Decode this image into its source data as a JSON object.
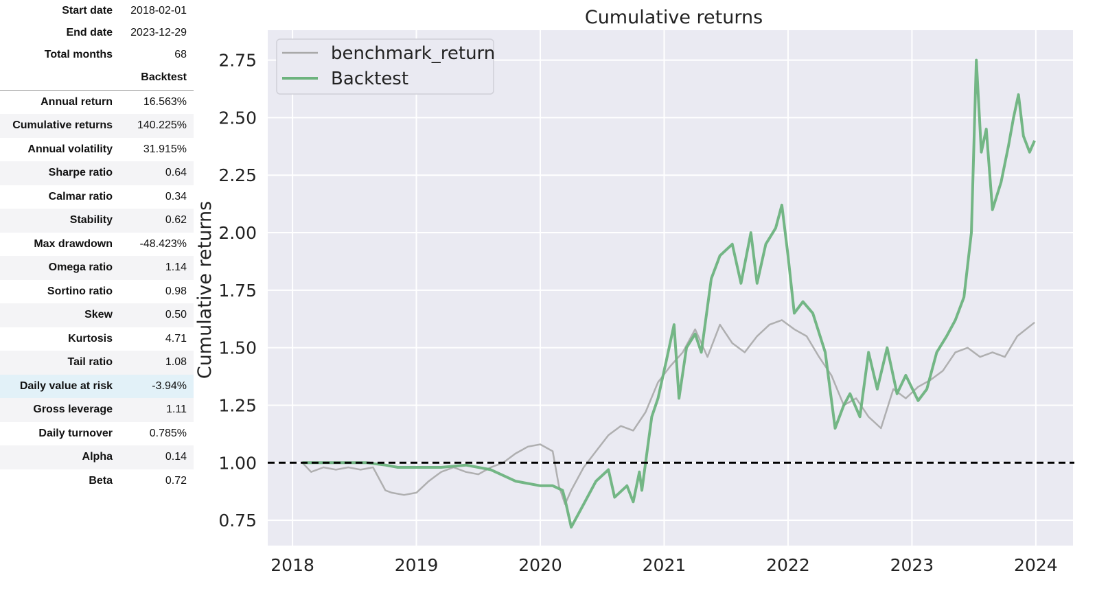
{
  "stats": {
    "header": [
      {
        "label": "Start date",
        "value": "2018-02-01"
      },
      {
        "label": "End date",
        "value": "2023-12-29"
      },
      {
        "label": "Total months",
        "value": "68"
      }
    ],
    "column_header": "Backtest",
    "metrics": [
      {
        "label": "Annual return",
        "value": "16.563%"
      },
      {
        "label": "Cumulative returns",
        "value": "140.225%"
      },
      {
        "label": "Annual volatility",
        "value": "31.915%"
      },
      {
        "label": "Sharpe ratio",
        "value": "0.64"
      },
      {
        "label": "Calmar ratio",
        "value": "0.34"
      },
      {
        "label": "Stability",
        "value": "0.62"
      },
      {
        "label": "Max drawdown",
        "value": "-48.423%"
      },
      {
        "label": "Omega ratio",
        "value": "1.14"
      },
      {
        "label": "Sortino ratio",
        "value": "0.98"
      },
      {
        "label": "Skew",
        "value": "0.50"
      },
      {
        "label": "Kurtosis",
        "value": "4.71"
      },
      {
        "label": "Tail ratio",
        "value": "1.08"
      },
      {
        "label": "Daily value at risk",
        "value": "-3.94%"
      },
      {
        "label": "Gross leverage",
        "value": "1.11"
      },
      {
        "label": "Daily turnover",
        "value": "0.785%"
      },
      {
        "label": "Alpha",
        "value": "0.14"
      },
      {
        "label": "Beta",
        "value": "0.72"
      }
    ]
  },
  "chart_data": {
    "type": "line",
    "title": "Cumulative returns",
    "xlabel": "",
    "ylabel": "Cumulative returns",
    "xlim": [
      2017.8,
      2024.3
    ],
    "ylim": [
      0.64,
      2.88
    ],
    "x_ticks": [
      2018,
      2019,
      2020,
      2021,
      2022,
      2023,
      2024
    ],
    "x_tick_labels": [
      "2018",
      "2019",
      "2020",
      "2021",
      "2022",
      "2023",
      "2024"
    ],
    "y_ticks": [
      0.75,
      1.0,
      1.25,
      1.5,
      1.75,
      2.0,
      2.25,
      2.5,
      2.75
    ],
    "y_tick_labels": [
      "0.75",
      "1.00",
      "1.25",
      "1.50",
      "1.75",
      "2.00",
      "2.25",
      "2.50",
      "2.75"
    ],
    "grid": true,
    "legend": "top-left",
    "reference_line": {
      "y": 1.0,
      "style": "dashed",
      "color": "#000000"
    },
    "colors": {
      "background": "#eaeaf2",
      "grid": "#ffffff",
      "benchmark": "#a9a9a9",
      "backtest": "#6db37e"
    },
    "series": [
      {
        "name": "benchmark_return",
        "color": "#a9a9a9",
        "x": [
          2018.08,
          2018.15,
          2018.25,
          2018.35,
          2018.45,
          2018.55,
          2018.65,
          2018.75,
          2018.8,
          2018.9,
          2019.0,
          2019.1,
          2019.2,
          2019.3,
          2019.4,
          2019.5,
          2019.6,
          2019.7,
          2019.8,
          2019.9,
          2020.0,
          2020.1,
          2020.15,
          2020.2,
          2020.25,
          2020.35,
          2020.45,
          2020.55,
          2020.65,
          2020.75,
          2020.85,
          2020.95,
          2021.05,
          2021.15,
          2021.25,
          2021.35,
          2021.45,
          2021.55,
          2021.65,
          2021.75,
          2021.85,
          2021.95,
          2022.05,
          2022.15,
          2022.25,
          2022.35,
          2022.45,
          2022.55,
          2022.65,
          2022.75,
          2022.85,
          2022.95,
          2023.05,
          2023.15,
          2023.25,
          2023.35,
          2023.45,
          2023.55,
          2023.65,
          2023.75,
          2023.85,
          2023.99
        ],
        "values": [
          1.0,
          0.96,
          0.98,
          0.97,
          0.98,
          0.97,
          0.98,
          0.88,
          0.87,
          0.86,
          0.87,
          0.92,
          0.96,
          0.98,
          0.96,
          0.95,
          0.98,
          1.0,
          1.04,
          1.07,
          1.08,
          1.05,
          0.9,
          0.82,
          0.88,
          0.98,
          1.05,
          1.12,
          1.16,
          1.14,
          1.22,
          1.35,
          1.42,
          1.48,
          1.58,
          1.46,
          1.6,
          1.52,
          1.48,
          1.55,
          1.6,
          1.62,
          1.58,
          1.55,
          1.46,
          1.38,
          1.25,
          1.28,
          1.2,
          1.15,
          1.32,
          1.28,
          1.33,
          1.36,
          1.4,
          1.48,
          1.5,
          1.46,
          1.48,
          1.46,
          1.55,
          1.61
        ]
      },
      {
        "name": "Backtest",
        "color": "#6db37e",
        "x": [
          2018.08,
          2018.2,
          2018.4,
          2018.6,
          2018.75,
          2018.85,
          2019.0,
          2019.2,
          2019.4,
          2019.6,
          2019.8,
          2020.0,
          2020.1,
          2020.18,
          2020.2,
          2020.25,
          2020.35,
          2020.45,
          2020.55,
          2020.6,
          2020.7,
          2020.75,
          2020.8,
          2020.82,
          2020.85,
          2020.9,
          2020.95,
          2021.02,
          2021.08,
          2021.12,
          2021.18,
          2021.25,
          2021.3,
          2021.38,
          2021.45,
          2021.55,
          2021.62,
          2021.7,
          2021.75,
          2021.82,
          2021.9,
          2021.95,
          2022.0,
          2022.05,
          2022.12,
          2022.2,
          2022.3,
          2022.38,
          2022.45,
          2022.5,
          2022.58,
          2022.65,
          2022.72,
          2022.8,
          2022.88,
          2022.95,
          2023.05,
          2023.12,
          2023.2,
          2023.28,
          2023.35,
          2023.42,
          2023.48,
          2023.52,
          2023.56,
          2023.6,
          2023.65,
          2023.72,
          2023.78,
          2023.82,
          2023.86,
          2023.9,
          2023.95,
          2023.99
        ],
        "values": [
          1.0,
          1.0,
          1.0,
          1.0,
          0.99,
          0.98,
          0.98,
          0.98,
          0.99,
          0.97,
          0.92,
          0.9,
          0.9,
          0.88,
          0.84,
          0.72,
          0.82,
          0.92,
          0.97,
          0.85,
          0.9,
          0.83,
          0.96,
          0.88,
          1.0,
          1.2,
          1.28,
          1.45,
          1.6,
          1.28,
          1.5,
          1.56,
          1.48,
          1.8,
          1.9,
          1.95,
          1.78,
          2.0,
          1.78,
          1.95,
          2.02,
          2.12,
          1.9,
          1.65,
          1.7,
          1.65,
          1.48,
          1.15,
          1.25,
          1.3,
          1.2,
          1.48,
          1.32,
          1.5,
          1.3,
          1.38,
          1.27,
          1.32,
          1.48,
          1.55,
          1.62,
          1.72,
          2.0,
          2.75,
          2.35,
          2.45,
          2.1,
          2.22,
          2.38,
          2.5,
          2.6,
          2.42,
          2.35,
          2.4
        ]
      }
    ]
  }
}
